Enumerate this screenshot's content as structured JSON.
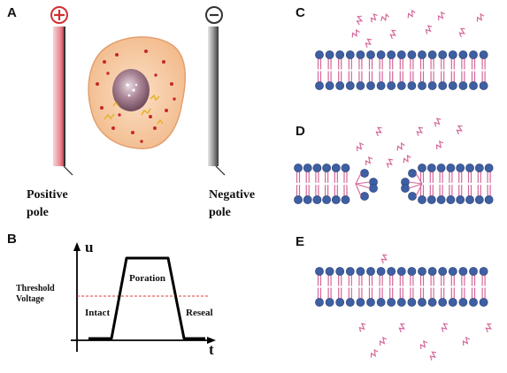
{
  "panels": {
    "a": {
      "letter": "A",
      "positive_symbol": "+",
      "negative_symbol": "-",
      "positive_label_line1": "Positive",
      "positive_label_line2": "pole",
      "negative_label_line1": "Negative",
      "negative_label_line2": "pole",
      "colors": {
        "positive_plate": "#e8858f",
        "negative_plate": "#5a5a5a",
        "cell": "#f6c59a",
        "nucleus": "#8f6577",
        "pole_symbol": "#d32f2f"
      }
    },
    "b": {
      "letter": "B",
      "y_axis_label": "u",
      "x_axis_label": "t",
      "threshold_line1": "Threshold",
      "threshold_line2": "Voltage",
      "region_intact": "Intact",
      "region_poration": "Poration",
      "region_reseal": "Reseal",
      "colors": {
        "pulse": "#000000",
        "threshold": "#e53935"
      }
    },
    "c": {
      "letter": "C"
    },
    "d": {
      "letter": "D"
    },
    "e": {
      "letter": "E"
    },
    "membrane_colors": {
      "head": "#3f5fa3",
      "tail": "#d4679a"
    }
  }
}
